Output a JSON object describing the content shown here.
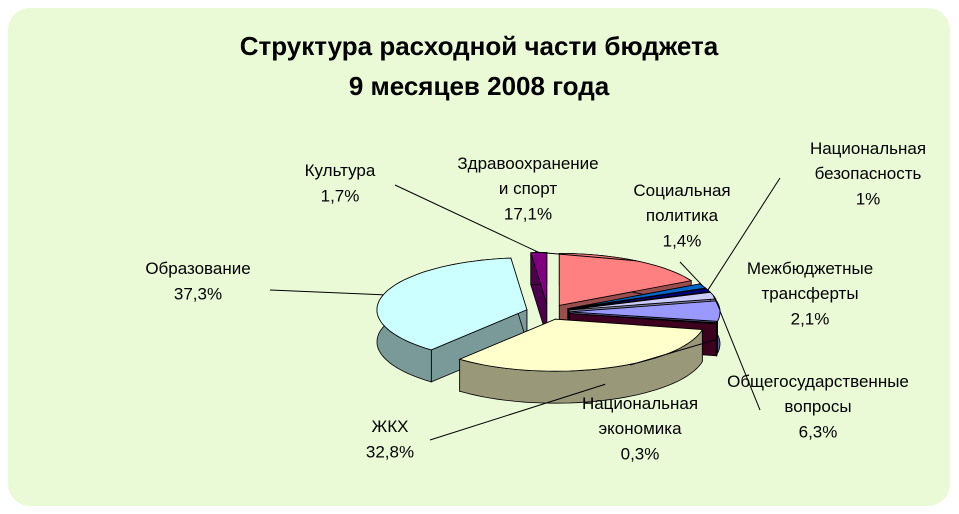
{
  "chart_data": {
    "type": "pie",
    "title": [
      "Структура расходной части бюджета",
      "9 месяцев 2008 года"
    ],
    "categories": [
      "Здравоохранение и спорт",
      "Социальная политика",
      "Национальная безопасность",
      "Межбюджетные трансферты",
      "Общегосударственные вопросы",
      "Национальная экономика",
      "ЖКХ",
      "Образование",
      "Культура"
    ],
    "values": [
      17.1,
      1.4,
      1,
      2.1,
      6.3,
      0.3,
      32.8,
      37.3,
      1.7
    ],
    "value_labels": [
      "17,1%",
      "1,4%",
      "1%",
      "2,1%",
      "6,3%",
      "0,3%",
      "32,8%",
      "37,3%",
      "1,7%"
    ],
    "colors": [
      "#ff8080",
      "#0066cc",
      "#000080",
      "#ccccff",
      "#9999ff",
      "#660033",
      "#ffffcc",
      "#ccffff",
      "#800080"
    ]
  }
}
